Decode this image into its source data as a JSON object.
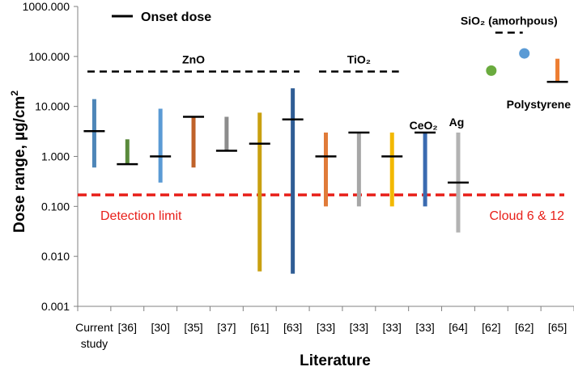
{
  "chart_data": {
    "type": "range",
    "xlabel": "Literature",
    "ylabel": "Dose range, µg/cm",
    "ylabel_superscript": "2",
    "yscale": "log",
    "ylim": [
      0.001,
      1000
    ],
    "yticks": [
      "0.001",
      "0.010",
      "0.100",
      "1.000",
      "10.000",
      "100.000",
      "1000.000"
    ],
    "categories": [
      "Current study",
      "[36]",
      "[30]",
      "[35]",
      "[37]",
      "[61]",
      "[63]",
      "[33]",
      "[33]",
      "[33]",
      "[33]",
      "[64]",
      "[62]",
      "[62]",
      "[65]"
    ],
    "category_lines": [
      [
        "Current",
        "study"
      ],
      [
        "[36]"
      ],
      [
        "[30]"
      ],
      [
        "[35]"
      ],
      [
        "[37]"
      ],
      [
        "[61]"
      ],
      [
        "[63]"
      ],
      [
        "[33]"
      ],
      [
        "[33]"
      ],
      [
        "[33]"
      ],
      [
        "[33]"
      ],
      [
        "[64]"
      ],
      [
        "[62]"
      ],
      [
        "[62]"
      ],
      [
        "[65]"
      ]
    ],
    "series": [
      {
        "name": "Current study",
        "min": 0.6,
        "max": 14,
        "onset": 3.2,
        "color": "#4e86b8"
      },
      {
        "name": "[36]",
        "min": 0.7,
        "max": 2.2,
        "onset": 0.7,
        "color": "#5a8a3c"
      },
      {
        "name": "[30]",
        "min": 0.3,
        "max": 9,
        "onset": 1.0,
        "color": "#5b9bd5"
      },
      {
        "name": "[35]",
        "min": 0.6,
        "max": 6.2,
        "onset": 6.2,
        "color": "#c0622a"
      },
      {
        "name": "[37]",
        "min": 1.3,
        "max": 6.2,
        "onset": 1.3,
        "color": "#8c8c8c"
      },
      {
        "name": "[61]",
        "min": 0.005,
        "max": 7.5,
        "onset": 1.8,
        "color": "#c9a010"
      },
      {
        "name": "[63]",
        "min": 0.0045,
        "max": 23,
        "onset": 5.5,
        "color": "#2f5d95"
      },
      {
        "name": "[33]",
        "min": 0.1,
        "max": 3.0,
        "onset": 1.0,
        "color": "#e07b39"
      },
      {
        "name": "[33]",
        "min": 0.1,
        "max": 3.0,
        "onset": 3.0,
        "color": "#a6a6a6"
      },
      {
        "name": "[33]",
        "min": 0.1,
        "max": 3.0,
        "onset": 1.0,
        "color": "#f2b800"
      },
      {
        "name": "[33]",
        "min": 0.1,
        "max": 3.0,
        "onset": 3.0,
        "color": "#3a6bb0"
      },
      {
        "name": "[64]",
        "min": 0.03,
        "max": 3.0,
        "onset": 0.3,
        "color": "#b3b3b3"
      },
      {
        "name": "[62]",
        "point": 52,
        "color": "#6aab3e"
      },
      {
        "name": "[62]",
        "point": 115,
        "color": "#5b9bd5"
      },
      {
        "name": "[65]",
        "min": 31,
        "max": 90,
        "onset": 31,
        "color": "#ed7d31"
      }
    ],
    "groups": [
      {
        "label": "ZnO",
        "from": 0,
        "to": 6,
        "level": 50
      },
      {
        "label": "TiO₂",
        "from": 7,
        "to": 9,
        "level": 50
      },
      {
        "label": "SiO₂ (amorhpous)",
        "from": 12,
        "to": 13,
        "level": 300
      }
    ],
    "category_labels": [
      {
        "label": "CeO₂",
        "at": 10
      },
      {
        "label": "Ag",
        "at": 11
      },
      {
        "label": "Polystyrene",
        "at": 14
      }
    ],
    "detection_limit": {
      "value": 0.17,
      "label": "Detection limit",
      "color": "#e8201a"
    },
    "detection_note": "Cloud 6 & 12",
    "legend": {
      "label": "Onset dose",
      "placement": "top-left"
    }
  }
}
